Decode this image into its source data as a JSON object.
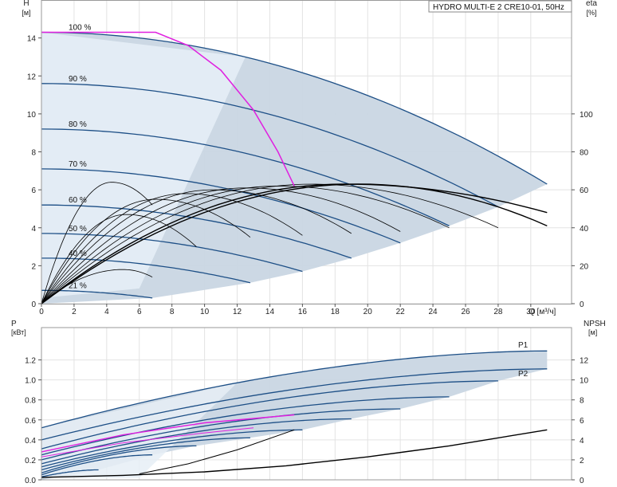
{
  "title": "HYDRO MULTI-E 2 CRE10-01, 50Hz",
  "colors": {
    "area": "#c9d6e3",
    "area_light": "#e6eef6",
    "curve": "#1d4f86",
    "duty": "#e020e0",
    "eta": "#000000"
  },
  "chart_data": [
    {
      "type": "line",
      "name": "head",
      "yaxis_label": "H",
      "yaxis_unit": "[м]",
      "y2axis_label": "eta",
      "y2axis_unit": "[%]",
      "xlabel": "Q [м³/ч]",
      "x_ticks": [
        "0",
        "2",
        "4",
        "6",
        "8",
        "10",
        "12",
        "14",
        "16",
        "18",
        "20",
        "22",
        "24",
        "26",
        "28",
        "30"
      ],
      "y_ticks": [
        "0",
        "2",
        "4",
        "6",
        "8",
        "10",
        "12",
        "14"
      ],
      "y2_ticks": [
        "0",
        "20",
        "40",
        "60",
        "80",
        "100"
      ],
      "xlim": [
        0,
        32.5
      ],
      "ylim": [
        0,
        16
      ],
      "y2lim": [
        0,
        160
      ],
      "speed_labels": [
        "100 %",
        "90 %",
        "80 %",
        "70 %",
        "60 %",
        "50 %",
        "40 %",
        "21 %"
      ],
      "speed_label_y": [
        14.3,
        11.6,
        9.2,
        7.1,
        5.2,
        3.7,
        2.4,
        0.7
      ],
      "speed_curves": [
        {
          "h0": 14.3,
          "qmax": 31.0,
          "hend": 6.3
        },
        {
          "h0": 11.6,
          "qmax": 28.0,
          "hend": 5.1
        },
        {
          "h0": 9.2,
          "qmax": 25.0,
          "hend": 4.1
        },
        {
          "h0": 7.1,
          "qmax": 22.0,
          "hend": 3.2
        },
        {
          "h0": 5.2,
          "qmax": 19.0,
          "hend": 2.4
        },
        {
          "h0": 3.7,
          "qmax": 16.0,
          "hend": 1.7
        },
        {
          "h0": 2.4,
          "qmax": 12.8,
          "hend": 1.1
        },
        {
          "h0": 0.7,
          "qmax": 6.8,
          "hend": 0.3
        }
      ],
      "duty_curve": [
        [
          7.0,
          14.3
        ],
        [
          9,
          13.6
        ],
        [
          11,
          12.3
        ],
        [
          13,
          10.2
        ],
        [
          14.5,
          8.0
        ],
        [
          15.5,
          6.2
        ]
      ],
      "eta_curves": [
        {
          "qmax": 31.0,
          "eta_max": 63,
          "q_peak": 19.5,
          "eta_end": 41
        },
        {
          "qmax": 31.0,
          "eta_max": 63,
          "q_peak": 18.5,
          "eta_end": 48
        },
        {
          "qmax": 28.0,
          "eta_max": 63,
          "q_peak": 16.5,
          "eta_end": 40
        },
        {
          "qmax": 25.0,
          "eta_max": 62,
          "q_peak": 14.5,
          "eta_end": 40
        },
        {
          "qmax": 22.0,
          "eta_max": 61,
          "q_peak": 12.5,
          "eta_end": 38
        },
        {
          "qmax": 19.0,
          "eta_max": 60,
          "q_peak": 10.5,
          "eta_end": 37
        },
        {
          "qmax": 16.0,
          "eta_max": 58,
          "q_peak": 8.8,
          "eta_end": 36
        },
        {
          "qmax": 12.8,
          "eta_max": 55,
          "q_peak": 7.0,
          "eta_end": 35
        },
        {
          "qmax": 9.5,
          "eta_max": 47,
          "q_peak": 5.2,
          "eta_end": 30
        },
        {
          "qmax": 6.8,
          "eta_max": 64,
          "q_peak": 4.3,
          "eta_end": 52
        },
        {
          "qmax": 6.8,
          "eta_max": 18,
          "q_peak": 5.0,
          "eta_end": 14
        }
      ]
    },
    {
      "type": "line",
      "name": "power",
      "yaxis_label": "P",
      "yaxis_unit": "[кВт]",
      "y2axis_label": "NPSH",
      "y2axis_unit": "[м]",
      "y_ticks": [
        "0.0",
        "0.2",
        "0.4",
        "0.6",
        "0.8",
        "1.0",
        "1.2"
      ],
      "y2_ticks": [
        "0",
        "2",
        "4",
        "6",
        "8",
        "10",
        "12"
      ],
      "ylim": [
        0,
        1.38
      ],
      "y2lim": [
        0,
        13.8
      ],
      "series_labels": [
        "P1",
        "P2"
      ],
      "power_curves": [
        {
          "p0": 0.52,
          "qmax": 31.0,
          "pend": 1.29
        },
        {
          "p0": 0.4,
          "qmax": 31.0,
          "pend": 1.11
        },
        {
          "p0": 0.31,
          "qmax": 28.0,
          "pend": 0.99
        },
        {
          "p0": 0.25,
          "qmax": 25.0,
          "pend": 0.83
        },
        {
          "p0": 0.2,
          "qmax": 22.0,
          "pend": 0.71
        },
        {
          "p0": 0.16,
          "qmax": 19.0,
          "pend": 0.61
        },
        {
          "p0": 0.13,
          "qmax": 16.0,
          "pend": 0.5
        },
        {
          "p0": 0.1,
          "qmax": 12.8,
          "pend": 0.42
        },
        {
          "p0": 0.07,
          "qmax": 9.5,
          "pend": 0.34
        },
        {
          "p0": 0.05,
          "qmax": 6.8,
          "pend": 0.25
        },
        {
          "p0": 0.03,
          "qmax": 3.5,
          "pend": 0.1
        }
      ],
      "duty_power": [
        [
          0,
          0.28
        ],
        [
          5,
          0.45
        ],
        [
          10,
          0.57
        ],
        [
          15.5,
          0.65
        ]
      ],
      "duty_power_low": [
        [
          0,
          0.23
        ],
        [
          5,
          0.37
        ],
        [
          10,
          0.47
        ],
        [
          13,
          0.52
        ]
      ],
      "npsh_curve": [
        [
          0,
          0.25
        ],
        [
          5,
          0.45
        ],
        [
          10,
          0.8
        ],
        [
          15,
          1.4
        ],
        [
          20,
          2.3
        ],
        [
          25,
          3.4
        ],
        [
          31,
          5.0
        ]
      ],
      "npsh_steep": [
        [
          6,
          0.6
        ],
        [
          9,
          1.6
        ],
        [
          12,
          3.0
        ],
        [
          15.5,
          5.0
        ]
      ]
    }
  ]
}
